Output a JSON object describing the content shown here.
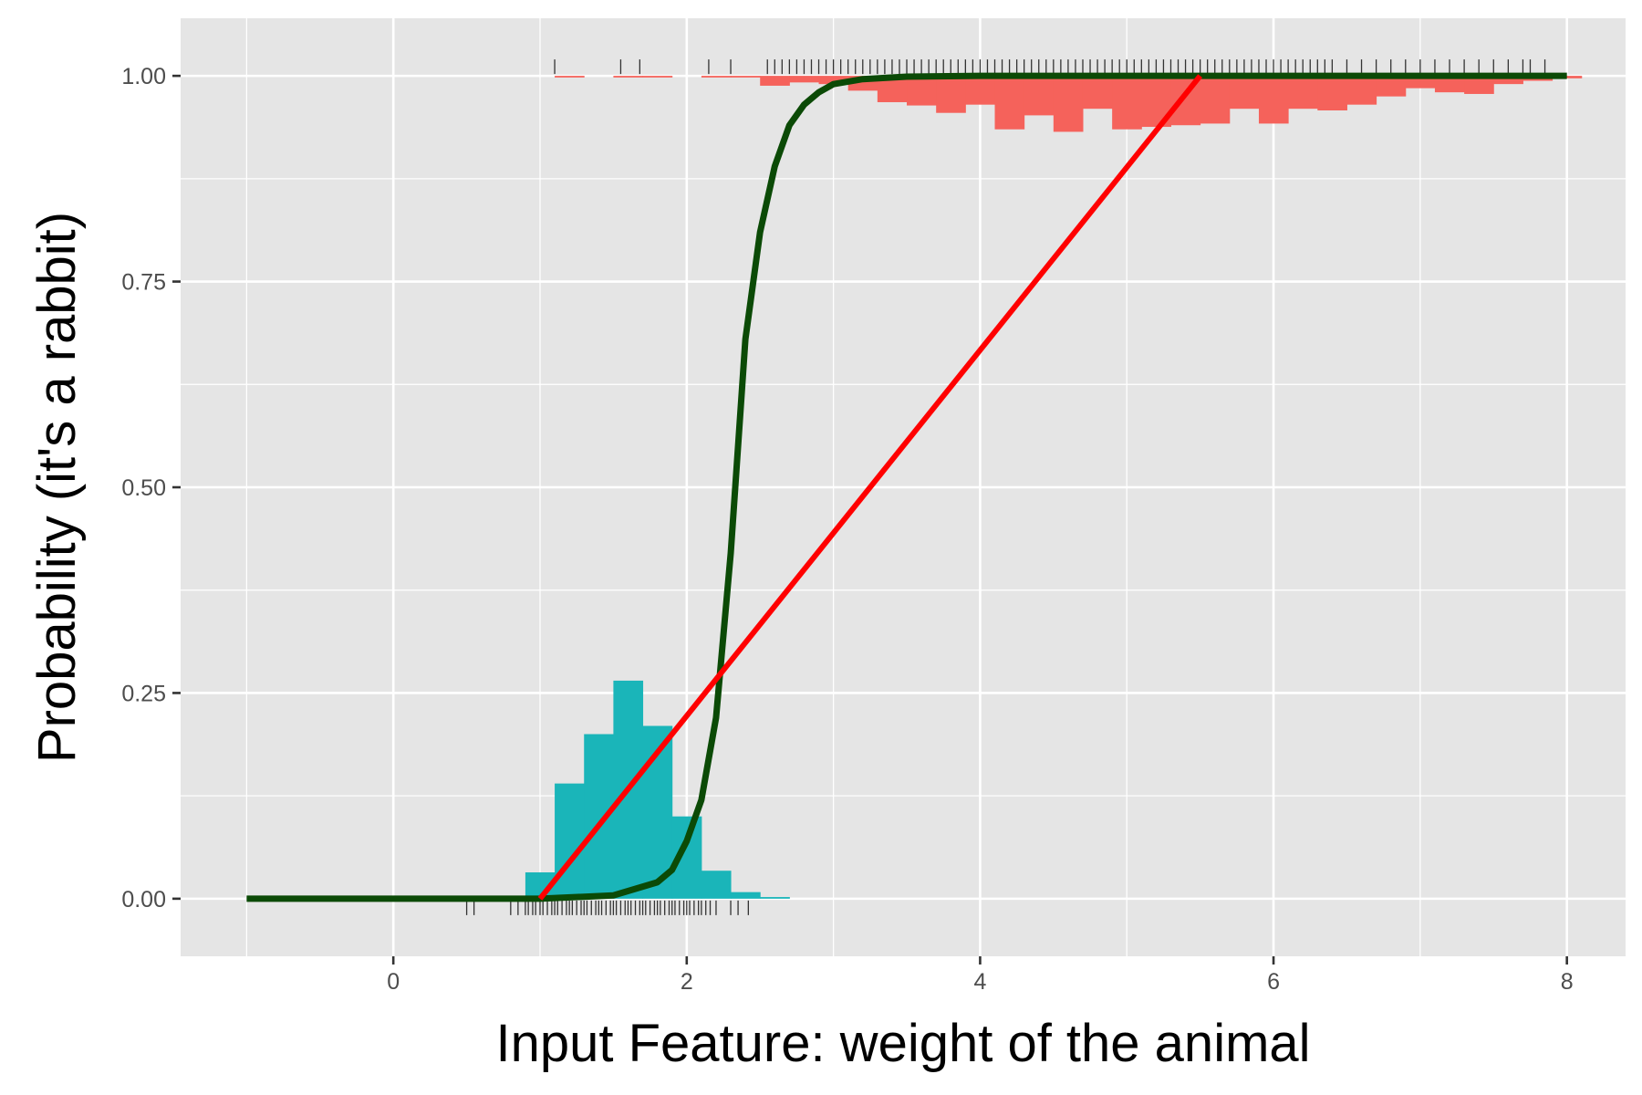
{
  "chart_data": {
    "type": "line",
    "title": "",
    "xlabel": "Input Feature: weight of the animal",
    "ylabel": "Probability (it's a rabbit)",
    "xlim": [
      -1.45,
      8.4
    ],
    "ylim": [
      -0.07,
      1.07
    ],
    "x_ticks": [
      0,
      2,
      4,
      6,
      8
    ],
    "x_tick_labels": [
      "0",
      "2",
      "4",
      "6",
      "8"
    ],
    "y_ticks": [
      0,
      0.25,
      0.5,
      0.75,
      1
    ],
    "y_tick_labels": [
      "0.00",
      "0.25",
      "0.50",
      "0.75",
      "1.00"
    ],
    "grid": true,
    "legend": "none",
    "colors": {
      "panel_bg": "#e5e5e5",
      "grid": "#ffffff",
      "logistic_curve": "#0b4a06",
      "linear_fit": "#ff0000",
      "histogram_class0": "#1ab5b9",
      "histogram_class1": "#f5625b",
      "rug": "#333333"
    },
    "logistic_curve": {
      "x": [
        -1,
        0,
        1,
        1.5,
        1.8,
        1.9,
        2.0,
        2.1,
        2.2,
        2.3,
        2.4,
        2.5,
        2.6,
        2.7,
        2.8,
        2.9,
        3.0,
        3.2,
        3.5,
        4,
        5,
        6,
        7,
        8
      ],
      "y": [
        0,
        0,
        0,
        0.004,
        0.02,
        0.035,
        0.07,
        0.12,
        0.22,
        0.42,
        0.68,
        0.81,
        0.89,
        0.94,
        0.965,
        0.98,
        0.99,
        0.996,
        0.999,
        1,
        1,
        1,
        1,
        1
      ]
    },
    "linear_fit": {
      "x": [
        1.0,
        5.5
      ],
      "y": [
        0.0,
        1.0
      ]
    },
    "histogram_class0": {
      "bin_width": 0.2,
      "bin_starts": [
        0.9,
        1.1,
        1.3,
        1.5,
        1.7,
        1.9,
        2.1,
        2.3,
        2.5
      ],
      "heights": [
        0.032,
        0.14,
        0.2,
        0.265,
        0.21,
        0.1,
        0.034,
        0.008,
        0.002
      ]
    },
    "histogram_class1": {
      "bin_width": 0.2,
      "bin_starts": [
        1.1,
        1.3,
        1.5,
        1.7,
        1.9,
        2.1,
        2.3,
        2.5,
        2.7,
        2.9,
        3.1,
        3.3,
        3.5,
        3.7,
        3.9,
        4.1,
        4.3,
        4.5,
        4.7,
        4.9,
        5.1,
        5.3,
        5.5,
        5.7,
        5.9,
        6.1,
        6.3,
        6.5,
        6.7,
        6.9,
        7.1,
        7.3,
        7.5,
        7.7,
        7.9
      ],
      "heights": [
        0.002,
        0,
        0.002,
        0.002,
        0,
        0.002,
        0.002,
        0.012,
        0.008,
        0.01,
        0.018,
        0.032,
        0.036,
        0.045,
        0.035,
        0.065,
        0.048,
        0.068,
        0.04,
        0.065,
        0.062,
        0.06,
        0.058,
        0.04,
        0.058,
        0.04,
        0.042,
        0.035,
        0.025,
        0.015,
        0.02,
        0.022,
        0.01,
        0.006,
        0.003
      ]
    },
    "rug_class0": {
      "y": 0,
      "x": [
        0.5,
        0.55,
        0.8,
        0.85,
        0.9,
        0.92,
        0.95,
        0.97,
        1.0,
        1.02,
        1.05,
        1.08,
        1.1,
        1.12,
        1.15,
        1.18,
        1.2,
        1.22,
        1.25,
        1.28,
        1.3,
        1.32,
        1.35,
        1.38,
        1.4,
        1.42,
        1.45,
        1.48,
        1.5,
        1.52,
        1.55,
        1.58,
        1.6,
        1.62,
        1.65,
        1.68,
        1.7,
        1.72,
        1.75,
        1.78,
        1.8,
        1.82,
        1.85,
        1.88,
        1.9,
        1.92,
        1.95,
        1.98,
        2.0,
        2.02,
        2.05,
        2.08,
        2.1,
        2.13,
        2.16,
        2.2,
        2.3,
        2.35,
        2.42
      ]
    },
    "rug_class1": {
      "y": 1,
      "x": [
        1.1,
        1.55,
        1.68,
        2.15,
        2.3,
        2.55,
        2.6,
        2.65,
        2.7,
        2.75,
        2.8,
        2.85,
        2.9,
        2.95,
        3.0,
        3.05,
        3.1,
        3.15,
        3.2,
        3.25,
        3.3,
        3.35,
        3.4,
        3.45,
        3.5,
        3.55,
        3.6,
        3.65,
        3.7,
        3.75,
        3.8,
        3.85,
        3.9,
        3.95,
        4.0,
        4.05,
        4.1,
        4.15,
        4.2,
        4.25,
        4.3,
        4.35,
        4.4,
        4.45,
        4.5,
        4.55,
        4.6,
        4.65,
        4.7,
        4.75,
        4.8,
        4.85,
        4.9,
        4.95,
        5.0,
        5.05,
        5.1,
        5.15,
        5.2,
        5.25,
        5.3,
        5.35,
        5.4,
        5.45,
        5.5,
        5.55,
        5.6,
        5.65,
        5.7,
        5.75,
        5.8,
        5.85,
        5.9,
        5.95,
        6.0,
        6.05,
        6.1,
        6.15,
        6.2,
        6.25,
        6.3,
        6.35,
        6.4,
        6.5,
        6.6,
        6.7,
        6.8,
        6.9,
        7.0,
        7.1,
        7.2,
        7.3,
        7.4,
        7.5,
        7.6,
        7.7,
        7.75,
        7.85
      ]
    }
  }
}
